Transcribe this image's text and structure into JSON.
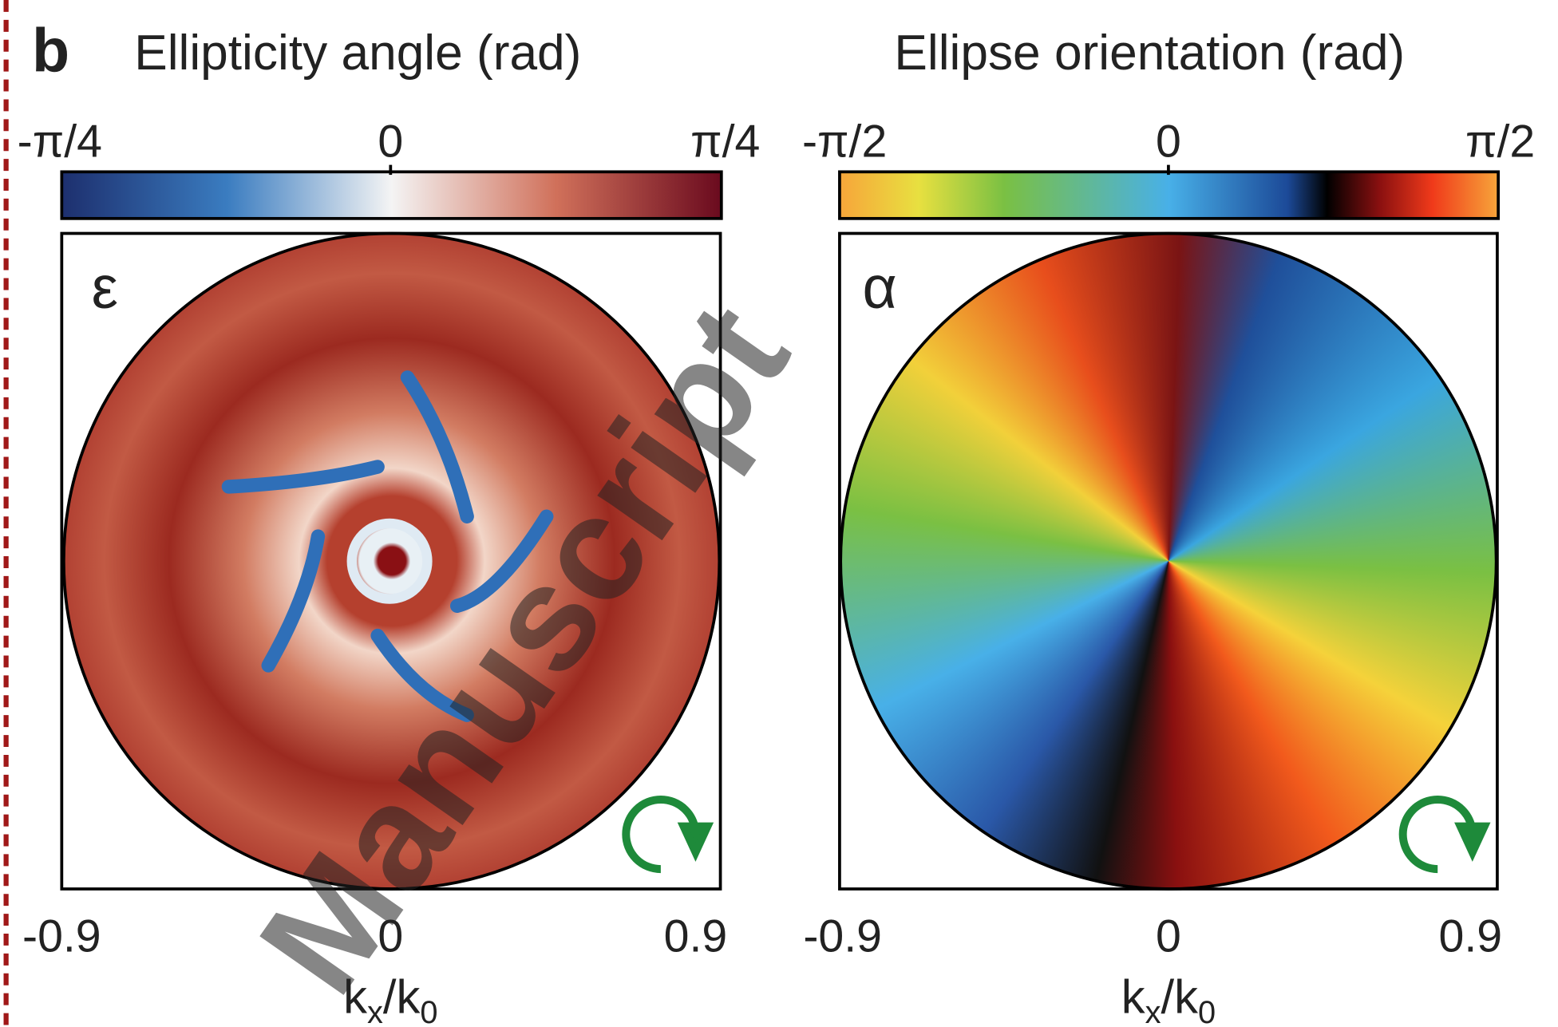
{
  "panel_label": "b",
  "panels": [
    {
      "title": "Ellipticity angle (rad)",
      "colorbar_ticks": [
        "-π/4",
        "0",
        "π/4"
      ],
      "symbol": "ε",
      "x_ticks": [
        "-0.9",
        "0",
        "0.9"
      ],
      "x_label": {
        "k": "k",
        "sub1": "x",
        "slash": "/k",
        "sub2": "0"
      }
    },
    {
      "title": "Ellipse orientation  (rad)",
      "colorbar_ticks": [
        "-π/2",
        "0",
        "π/2"
      ],
      "symbol": "α",
      "x_ticks": [
        "-0.9",
        "0",
        "0.9"
      ],
      "x_label": {
        "k": "k",
        "sub1": "x",
        "slash": "/k",
        "sub2": "0"
      }
    }
  ],
  "watermark": "Manuscript"
}
